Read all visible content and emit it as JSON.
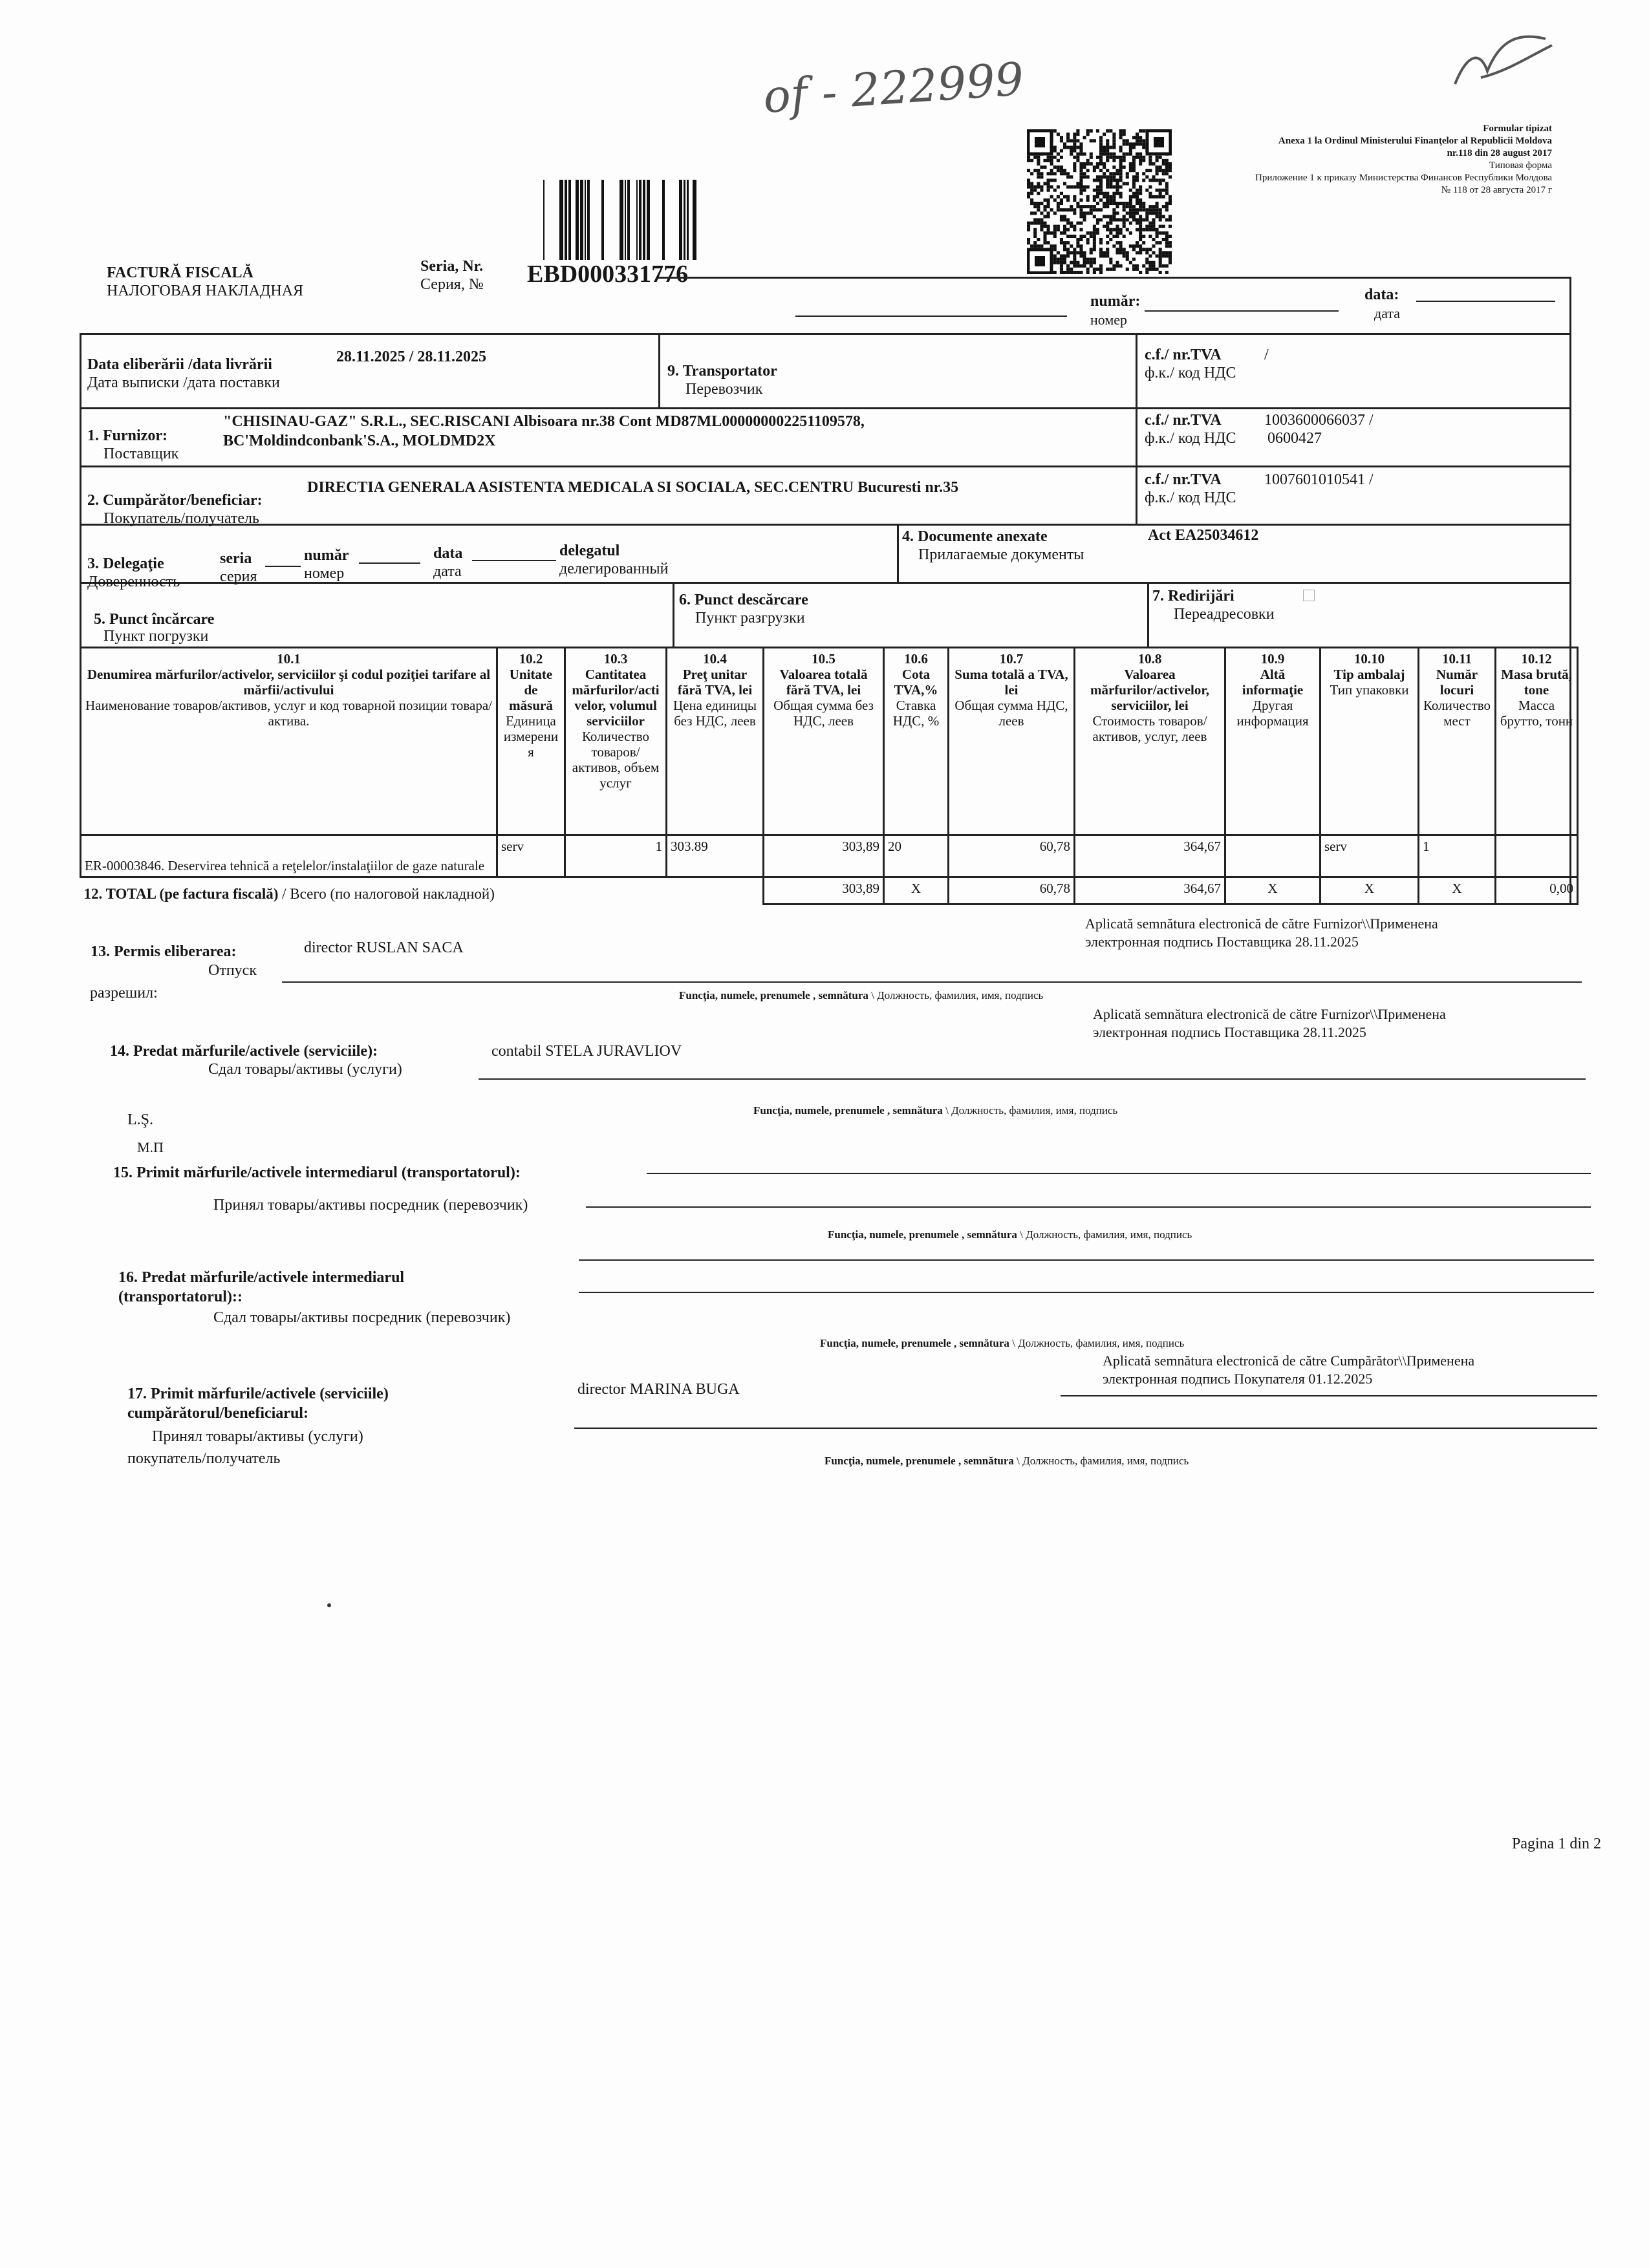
{
  "handwritten_note": "of - 222999",
  "form_header": {
    "line1": "Formular tipizat",
    "line2": "Anexa 1 la Ordinul Ministerului Finanţelor al Republicii Moldova",
    "line3": "nr.118 din 28 august 2017",
    "line4": "Типовая форма",
    "line5": "Приложение 1 к приказу Министерства Финансов Республики Молдова",
    "line6": "№  118 от 28 августа 2017 г"
  },
  "title": {
    "ro": "FACTURĂ FISCALĂ",
    "ru": "НАЛОГОВАЯ НАКЛАДНАЯ"
  },
  "series": {
    "label_ro": "Seria, Nr.",
    "label_ru": "Серия, №",
    "value": "EBD000331776"
  },
  "numar": {
    "label_ro": "număr:",
    "label_ru": "номер",
    "data_ro": "data:",
    "data_ru": "дата"
  },
  "dates": {
    "label_ro": "Data eliberării /data livrării",
    "label_ru": "Дата выписки /дата поставки",
    "value": "28.11.2025  / 28.11.2025"
  },
  "transport": {
    "label_ro": "9. Transportator",
    "label_ru": "Перевозчик"
  },
  "cf": {
    "label_ro": "c.f./ nr.TVA",
    "label_ru": "ф.к./ код НДС",
    "transport": "/",
    "supplier": "1003600066037 /",
    "supplier_tva": "0600427",
    "buyer": "1007601010541  /"
  },
  "supplier": {
    "label_ro": "1. Furnizor:",
    "label_ru": "Поставщик",
    "line1": "\"CHISINAU-GAZ\" S.R.L., SEC.RISCANI Albisoara nr.38 Cont MD87ML000000002251109578,",
    "line2": "BC'Moldindconbank'S.A., MOLDMD2X"
  },
  "buyer": {
    "label_ro": "2. Cumpărător/beneficiar:",
    "label_ru": "Покупатель/получатель",
    "value": "DIRECTIA GENERALA ASISTENTA MEDICALA SI SOCIALA, SEC.CENTRU Bucuresti nr.35"
  },
  "delegation": {
    "label_ro": "3. Delegaţie",
    "label_ru": "Доверенность",
    "seria_ro": "seria",
    "seria_ru": "серия",
    "numar_ro": "număr",
    "numar_ru": "номер",
    "data_ro": "data",
    "data_ru": "дата",
    "delegat_ro": "delegatul",
    "delegat_ru": "делегированный"
  },
  "documents": {
    "label_ro": "4. Documente anexate",
    "label_ru": "Прилагаемые документы",
    "value": "Act  EA25034612"
  },
  "loading": {
    "label_ro": "5. Punct încărcare",
    "label_ru": "Пункт погрузки"
  },
  "unloading": {
    "label_ro": "6. Punct descărcare",
    "label_ru": "Пункт разгрузки"
  },
  "redirect": {
    "label_ro": "7. Redirijări",
    "label_ru": "Переадресовки"
  },
  "table": {
    "headers": [
      {
        "num": "10.1",
        "ro": "Denumirea mărfurilor/activelor, serviciilor şi codul poziţiei tarifare  al mărfii/activului",
        "ru": "Наименование товаров/активов, услуг и код товарной позиции товара/актива."
      },
      {
        "num": "10.2",
        "ro": "Unitate de măsură",
        "ru": "Единица измерения"
      },
      {
        "num": "10.3",
        "ro": "Cantitatea mărfurilor/activelor, volumul serviciilor",
        "ru": "Количество товаров/активов, объем услуг"
      },
      {
        "num": "10.4",
        "ro": "Preţ unitar fără TVA, lei",
        "ru": "Цена единицы без НДС, леев"
      },
      {
        "num": "10.5",
        "ro": "Valoarea totală fără TVA, lei",
        "ru": "Общая сумма без НДС, леев"
      },
      {
        "num": "10.6",
        "ro": "Cota TVA,%",
        "ru": "Ставка НДС, %"
      },
      {
        "num": "10.7",
        "ro": "Suma totală a TVA, lei",
        "ru": "Общая сумма НДС, леев"
      },
      {
        "num": "10.8",
        "ro": "Valoarea mărfurilor/activelor, serviciilor, lei",
        "ru": "Стоимость товаров/активов, услуг, леев"
      },
      {
        "num": "10.9",
        "ro": "Altă informaţie",
        "ru": "Другая информация"
      },
      {
        "num": "10.10",
        "ro": "Tip ambalaj",
        "ru": "Тип упаковки"
      },
      {
        "num": "10.11",
        "ro": "Număr locuri",
        "ru": "Количество мест"
      },
      {
        "num": "10.12",
        "ro": "Masa brută, tone",
        "ru": "Масса брутто, тонн"
      }
    ],
    "rows": [
      [
        "ER-00003846. Deservirea tehnică a reţelelor/instalaţiilor de gaze naturale",
        "serv",
        "1",
        "303.89",
        "303,89",
        "20",
        "60,78",
        "364,67",
        "",
        "serv",
        "1",
        ""
      ]
    ],
    "total": {
      "label_ro": "12. TOTAL (pe factura fiscală)",
      "label_ru": "/ Всего (по налоговой накладной)",
      "values": [
        "303,89",
        "X",
        "60,78",
        "364,67",
        "X",
        "X",
        "X",
        "0,00"
      ]
    }
  },
  "caption": {
    "ro": "Funcţia, numele, prenumele , semnătura",
    "ru": "\\ Должность, фамилия, имя,  подпись"
  },
  "esign_supplier": {
    "line1": "Aplicată semnătura electronică de către Furnizor\\\\Применена",
    "line2": "электронная подпись Поставщика 28.11.2025"
  },
  "esign_buyer": {
    "line1": "Aplicată semnătura electronică de către Cumpărător\\\\Применена",
    "line2": "электронная подпись Покупателя 01.12.2025"
  },
  "s13": {
    "label": "13. Permis eliberarea:",
    "ru1": "Отпуск",
    "ru2": "разрешил:",
    "value": "director RUSLAN SACA"
  },
  "s14": {
    "label": "14. Predat mărfurile/activele (serviciile):",
    "ru": "Сдал товары/активы (услуги)",
    "value": "contabil STELA JURAVLIOV"
  },
  "stamp": {
    "ro": "L.Ş.",
    "ru": "М.П"
  },
  "s15": {
    "label": "15. Primit mărfurile/activele intermediarul (transportatorul):",
    "ru": "Принял товары/активы посредник (перевозчик)"
  },
  "s16": {
    "label1": "16. Predat mărfurile/activele intermediarul",
    "label2": "(transportatorul)::",
    "ru": "Сдал товары/активы посредник (перевозчик)"
  },
  "s17": {
    "label1": "17. Primit mărfurile/activele (serviciile)",
    "label2": "cumpărătorul/beneficiarul:",
    "ru1": "Принял товары/активы (услуги)",
    "ru2": "покупатель/получатель",
    "value": "director MARINA BUGA"
  },
  "footer": {
    "page": "Pagina 1 din 2"
  }
}
